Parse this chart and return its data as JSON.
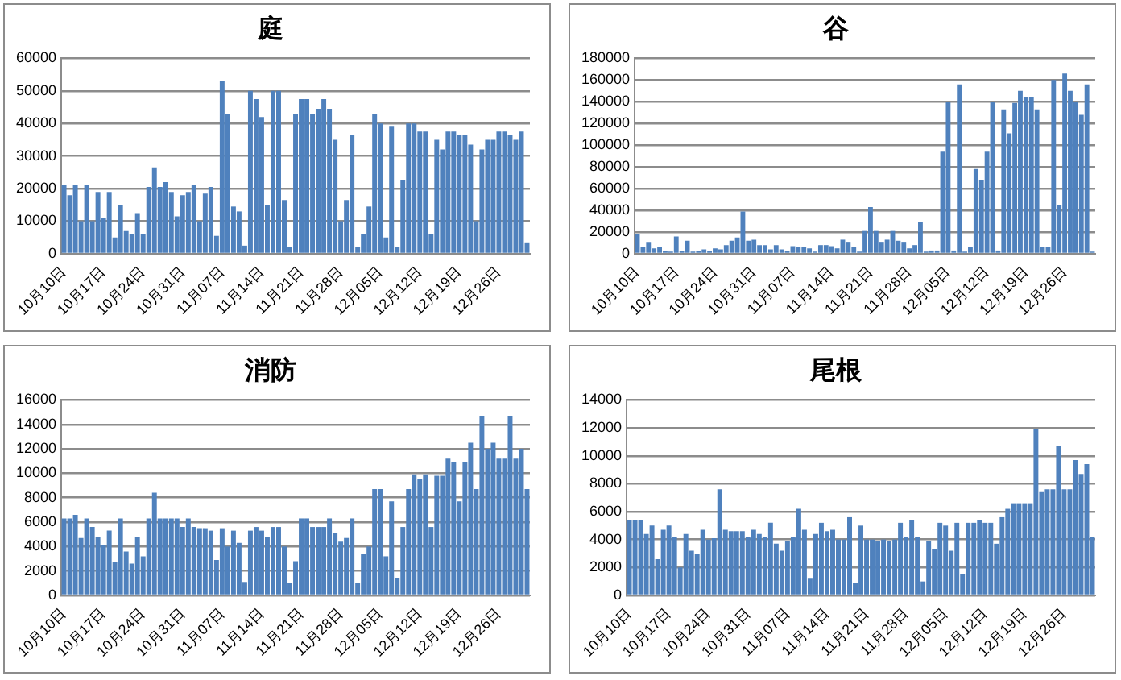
{
  "chart_data": [
    {
      "type": "bar",
      "title": "庭",
      "color": "#4f81bd",
      "grid": "y",
      "ylim": [
        0,
        60000
      ],
      "yticks": [
        0,
        10000,
        20000,
        30000,
        40000,
        50000,
        60000
      ],
      "categories": [
        "10月10日",
        null,
        null,
        null,
        null,
        null,
        null,
        "10月17日",
        null,
        null,
        null,
        null,
        null,
        null,
        "10月24日",
        null,
        null,
        null,
        null,
        null,
        null,
        "10月31日",
        null,
        null,
        null,
        null,
        null,
        null,
        "11月07日",
        null,
        null,
        null,
        null,
        null,
        null,
        "11月14日",
        null,
        null,
        null,
        null,
        null,
        null,
        "11月21日",
        null,
        null,
        null,
        null,
        null,
        null,
        "11月28日",
        null,
        null,
        null,
        null,
        null,
        null,
        "12月05日",
        null,
        null,
        null,
        null,
        null,
        null,
        "12月12日",
        null,
        null,
        null,
        null,
        null,
        null,
        "12月19日",
        null,
        null,
        null,
        null,
        null,
        null,
        "12月26日",
        null,
        null,
        null,
        null,
        null
      ],
      "values": [
        21000,
        18000,
        21000,
        10000,
        21000,
        10000,
        19000,
        11000,
        19000,
        5000,
        15000,
        7000,
        6000,
        12500,
        6000,
        20500,
        26500,
        20500,
        22000,
        19000,
        11500,
        18000,
        19000,
        21000,
        10000,
        18500,
        20500,
        5500,
        53000,
        43000,
        14500,
        13000,
        2500,
        50000,
        47500,
        42000,
        15000,
        50000,
        50000,
        16500,
        2000,
        43000,
        47500,
        47500,
        43000,
        44500,
        47500,
        44500,
        35000,
        10000,
        16500,
        36500,
        2000,
        6000,
        14500,
        43000,
        40000,
        5000,
        39000,
        2000,
        22500,
        40000,
        40000,
        37500,
        37500,
        6000,
        35000,
        32000,
        37500,
        37500,
        36500,
        36500,
        33500,
        10000,
        32000,
        35000,
        35000,
        37500,
        37500,
        36500,
        35000,
        37500,
        3500
      ]
    },
    {
      "type": "bar",
      "title": "谷",
      "color": "#4f81bd",
      "grid": "y",
      "ylim": [
        0,
        180000
      ],
      "yticks": [
        0,
        20000,
        40000,
        60000,
        80000,
        100000,
        120000,
        140000,
        160000,
        180000
      ],
      "categories": [
        "10月10日",
        null,
        null,
        null,
        null,
        null,
        null,
        "10月17日",
        null,
        null,
        null,
        null,
        null,
        null,
        "10月24日",
        null,
        null,
        null,
        null,
        null,
        null,
        "10月31日",
        null,
        null,
        null,
        null,
        null,
        null,
        "11月07日",
        null,
        null,
        null,
        null,
        null,
        null,
        "11月14日",
        null,
        null,
        null,
        null,
        null,
        null,
        "11月21日",
        null,
        null,
        null,
        null,
        null,
        null,
        "11月28日",
        null,
        null,
        null,
        null,
        null,
        null,
        "12月05日",
        null,
        null,
        null,
        null,
        null,
        null,
        "12月12日",
        null,
        null,
        null,
        null,
        null,
        null,
        "12月19日",
        null,
        null,
        null,
        null,
        null,
        null,
        "12月26日",
        null,
        null,
        null,
        null,
        null
      ],
      "values": [
        18000,
        6000,
        11000,
        5000,
        6000,
        3000,
        2000,
        16000,
        3000,
        12000,
        2000,
        3000,
        4000,
        3000,
        5000,
        4000,
        8000,
        12000,
        15000,
        39000,
        12000,
        13000,
        8000,
        8000,
        4000,
        8000,
        4000,
        3000,
        7000,
        6000,
        6000,
        5000,
        2000,
        8000,
        8000,
        7000,
        5000,
        13000,
        11000,
        6000,
        2000,
        21000,
        43000,
        21000,
        11000,
        13000,
        21000,
        12000,
        11000,
        5000,
        8000,
        29000,
        2000,
        3000,
        3000,
        94000,
        140000,
        3000,
        156000,
        2000,
        6000,
        78000,
        68000,
        94000,
        140000,
        3000,
        133000,
        111000,
        139000,
        150000,
        144000,
        144000,
        133000,
        6000,
        6000,
        160000,
        45000,
        166000,
        150000,
        140000,
        128000,
        156000,
        2000
      ]
    },
    {
      "type": "bar",
      "title": "消防",
      "color": "#4f81bd",
      "grid": "y",
      "ylim": [
        0,
        16000
      ],
      "yticks": [
        0,
        2000,
        4000,
        6000,
        8000,
        10000,
        12000,
        14000,
        16000
      ],
      "categories": [
        "10月10日",
        null,
        null,
        null,
        null,
        null,
        null,
        "10月17日",
        null,
        null,
        null,
        null,
        null,
        null,
        "10月24日",
        null,
        null,
        null,
        null,
        null,
        null,
        "10月31日",
        null,
        null,
        null,
        null,
        null,
        null,
        "11月07日",
        null,
        null,
        null,
        null,
        null,
        null,
        "11月14日",
        null,
        null,
        null,
        null,
        null,
        null,
        "11月21日",
        null,
        null,
        null,
        null,
        null,
        null,
        "11月28日",
        null,
        null,
        null,
        null,
        null,
        null,
        "12月05日",
        null,
        null,
        null,
        null,
        null,
        null,
        "12月12日",
        null,
        null,
        null,
        null,
        null,
        null,
        "12月19日",
        null,
        null,
        null,
        null,
        null,
        null,
        "12月26日",
        null,
        null,
        null,
        null,
        null
      ],
      "values": [
        6300,
        6300,
        6600,
        4700,
        6300,
        5600,
        4800,
        4100,
        5300,
        2700,
        6300,
        3600,
        2600,
        4800,
        3200,
        6300,
        8400,
        6300,
        6300,
        6300,
        6300,
        5600,
        6300,
        5600,
        5500,
        5500,
        5300,
        2900,
        5500,
        4000,
        5300,
        4300,
        1100,
        5300,
        5600,
        5300,
        4800,
        5600,
        5600,
        4000,
        1000,
        2800,
        6300,
        6300,
        5600,
        5600,
        5600,
        6300,
        5100,
        4400,
        4700,
        6300,
        1000,
        3400,
        4000,
        8700,
        8700,
        3200,
        7700,
        1400,
        5600,
        8700,
        9900,
        9500,
        9900,
        5600,
        9800,
        9800,
        11200,
        10900,
        7700,
        10900,
        12500,
        8700,
        14700,
        12000,
        12500,
        11200,
        11200,
        14700,
        11200,
        12000,
        8700
      ]
    },
    {
      "type": "bar",
      "title": "尾根",
      "color": "#4f81bd",
      "grid": "y",
      "ylim": [
        0,
        14000
      ],
      "yticks": [
        0,
        2000,
        4000,
        6000,
        8000,
        10000,
        12000,
        14000
      ],
      "categories": [
        "10月10日",
        null,
        null,
        null,
        null,
        null,
        null,
        "10月17日",
        null,
        null,
        null,
        null,
        null,
        null,
        "10月24日",
        null,
        null,
        null,
        null,
        null,
        null,
        "10月31日",
        null,
        null,
        null,
        null,
        null,
        null,
        "11月07日",
        null,
        null,
        null,
        null,
        null,
        null,
        "11月14日",
        null,
        null,
        null,
        null,
        null,
        null,
        "11月21日",
        null,
        null,
        null,
        null,
        null,
        null,
        "11月28日",
        null,
        null,
        null,
        null,
        null,
        null,
        "12月05日",
        null,
        null,
        null,
        null,
        null,
        null,
        "12月12日",
        null,
        null,
        null,
        null,
        null,
        null,
        "12月19日",
        null,
        null,
        null,
        null,
        null,
        null,
        "12月26日",
        null,
        null,
        null,
        null,
        null
      ],
      "values": [
        5400,
        5400,
        5400,
        4400,
        5000,
        2600,
        4700,
        5000,
        4200,
        2000,
        4400,
        3200,
        3000,
        4700,
        4000,
        4100,
        7600,
        4700,
        4600,
        4600,
        4600,
        4200,
        4700,
        4400,
        4200,
        5200,
        3700,
        3200,
        3900,
        4200,
        6200,
        4700,
        1200,
        4400,
        5200,
        4600,
        4700,
        4000,
        4000,
        5600,
        900,
        5000,
        4000,
        4000,
        3900,
        4000,
        3900,
        4000,
        5200,
        4200,
        5400,
        4200,
        1000,
        3900,
        3300,
        5200,
        5000,
        3200,
        5200,
        1500,
        5200,
        5200,
        5400,
        5200,
        5200,
        3700,
        5600,
        6200,
        6600,
        6600,
        6600,
        6600,
        11900,
        7400,
        7600,
        7600,
        10700,
        7600,
        7600,
        9700,
        8700,
        9400,
        4200
      ]
    }
  ]
}
